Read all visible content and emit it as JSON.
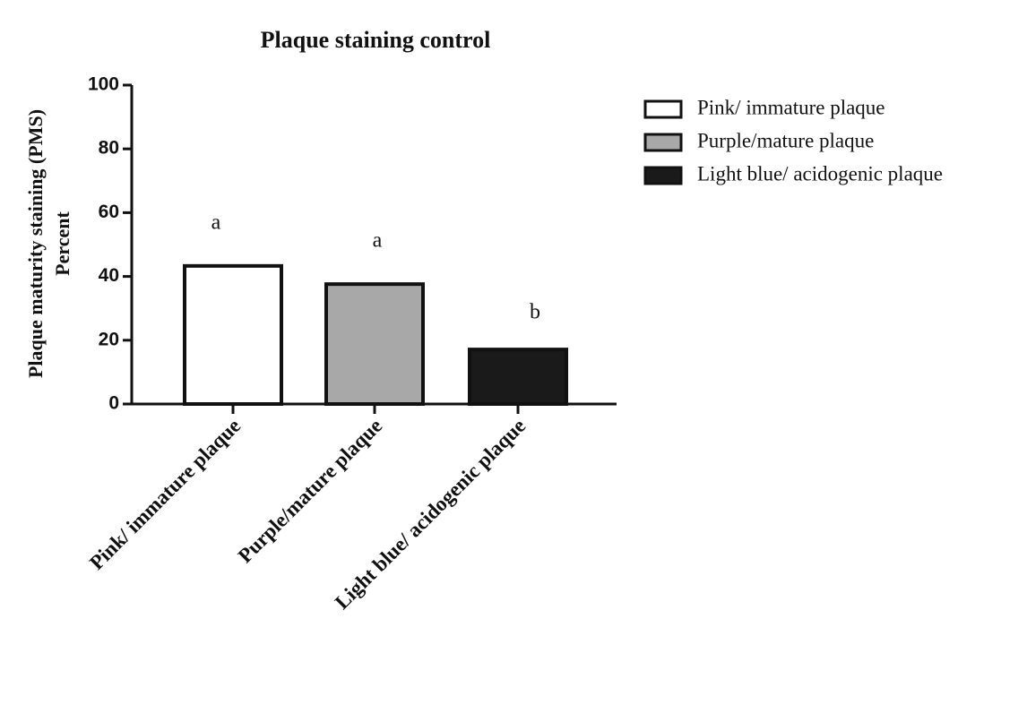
{
  "chart_data": {
    "type": "bar",
    "title": "Plaque staining control",
    "ylabel": [
      "Plaque maturity staining (PMS)",
      "Percent"
    ],
    "categories": [
      "Pink/ immature plaque",
      "Purple/mature plaque",
      "Light blue/ acidogenic plaque"
    ],
    "values": [
      43.3,
      37.6,
      17.1
    ],
    "colors": [
      "#ffffff",
      "#a8a8a8",
      "#1a1a1a"
    ],
    "annotations": [
      "a",
      "a",
      "b"
    ],
    "ylim": [
      0,
      100
    ],
    "yticks": [
      0,
      20,
      40,
      60,
      80,
      100
    ],
    "legend": "right"
  }
}
